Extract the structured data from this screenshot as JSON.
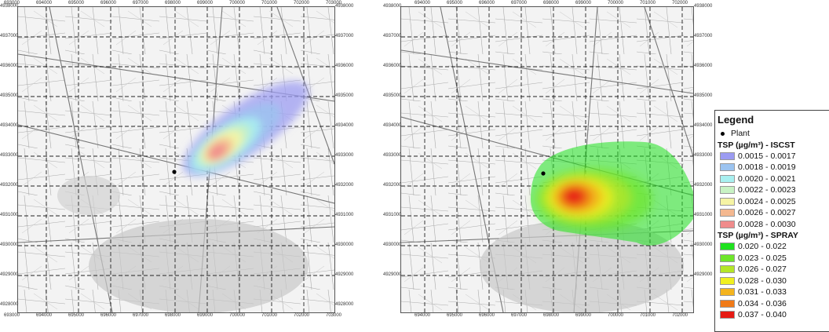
{
  "maps": {
    "left": {
      "x_ticks_top": [
        "693000",
        "694000",
        "695000",
        "696000",
        "697000",
        "698000",
        "699000",
        "700000",
        "701000",
        "702000",
        "703000"
      ],
      "x_ticks_bottom": [
        "693000",
        "694000",
        "695000",
        "696000",
        "697000",
        "698000",
        "699000",
        "700000",
        "701000",
        "702000",
        "703000"
      ],
      "y_ticks": [
        "4938000",
        "4937000",
        "4936000",
        "4935000",
        "4934000",
        "4933000",
        "4932000",
        "4931000",
        "4930000",
        "4929000",
        "4928000"
      ]
    },
    "right": {
      "x_ticks_top": [
        "694000",
        "695000",
        "696000",
        "697000",
        "698000",
        "699000",
        "700000",
        "701000",
        "702000"
      ],
      "x_ticks_bottom": [
        "694000",
        "695000",
        "696000",
        "697000",
        "698000",
        "699000",
        "700000",
        "701000",
        "702000"
      ],
      "y_ticks": [
        "4938000",
        "4937000",
        "4936000",
        "4935000",
        "4934000",
        "4933000",
        "4932000",
        "4931000",
        "4930000",
        "4929000"
      ]
    }
  },
  "legend": {
    "title": "Legend",
    "plant_label": "Plant",
    "section1_title": "TSP (µg/m³) - ISCST",
    "section1": [
      {
        "label": "0.0015 - 0.0017",
        "color": "#9c9cf2"
      },
      {
        "label": "0.0018 - 0.0019",
        "color": "#9cc4f0"
      },
      {
        "label": "0.0020 - 0.0021",
        "color": "#a8f0f0"
      },
      {
        "label": "0.0022 - 0.0023",
        "color": "#c8f2c4"
      },
      {
        "label": "0.0024 - 0.0025",
        "color": "#f6f4a4"
      },
      {
        "label": "0.0026 - 0.0027",
        "color": "#f4b890"
      },
      {
        "label": "0.0028 - 0.0030",
        "color": "#f08c8c"
      }
    ],
    "section2_title": "TSP (µg/m³) - SPRAY",
    "section2": [
      {
        "label": "0.020 - 0.022",
        "color": "#1ee21e"
      },
      {
        "label": "0.023 - 0.025",
        "color": "#6ee62a"
      },
      {
        "label": "0.026 - 0.027",
        "color": "#b4e628"
      },
      {
        "label": "0.028 - 0.030",
        "color": "#f0f020"
      },
      {
        "label": "0.031 - 0.033",
        "color": "#f4b41e"
      },
      {
        "label": "0.034 - 0.036",
        "color": "#f07a18"
      },
      {
        "label": "0.037 - 0.040",
        "color": "#e61a14"
      }
    ]
  }
}
